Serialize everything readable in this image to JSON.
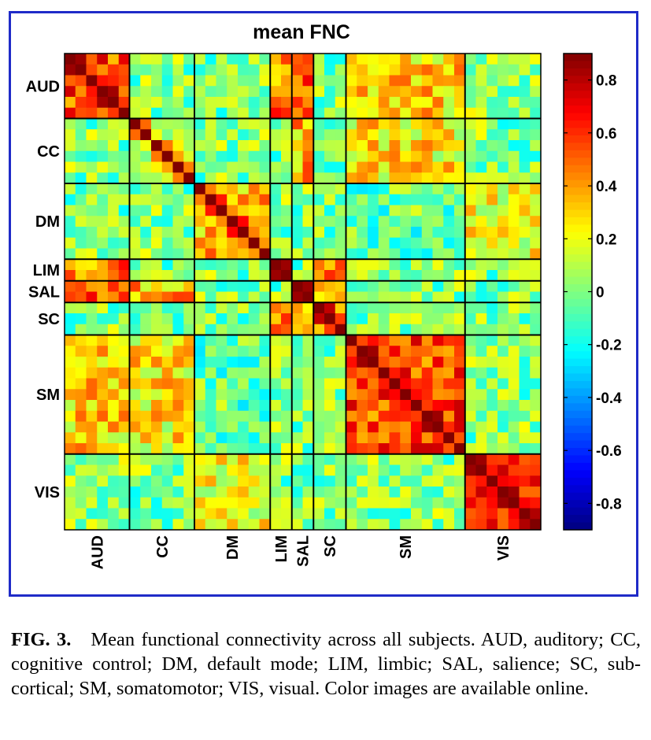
{
  "chart_data": {
    "type": "heatmap",
    "title": "mean FNC",
    "matrix_size": 44,
    "domains": [
      {
        "label": "AUD",
        "start": 0,
        "size": 6
      },
      {
        "label": "CC",
        "start": 6,
        "size": 6
      },
      {
        "label": "DM",
        "start": 12,
        "size": 7
      },
      {
        "label": "LIM",
        "start": 19,
        "size": 2
      },
      {
        "label": "SAL",
        "start": 21,
        "size": 2
      },
      {
        "label": "SC",
        "start": 23,
        "size": 3
      },
      {
        "label": "SM",
        "start": 26,
        "size": 11
      },
      {
        "label": "VIS",
        "start": 37,
        "size": 7
      }
    ],
    "block_means": {
      "within": {
        "AUD": 0.55,
        "CC": 0.15,
        "DM": 0.35,
        "LIM": 0.7,
        "SAL": 0.7,
        "SC": 0.5,
        "SM": 0.55,
        "VIS": 0.65
      },
      "between_baseline": 0.0,
      "notable_pairs": [
        {
          "a": "AUD",
          "b": "SM",
          "value": 0.3
        },
        {
          "a": "AUD",
          "b": "LIM",
          "value": 0.45
        },
        {
          "a": "AUD",
          "b": "SAL",
          "value": 0.5
        },
        {
          "a": "AUD",
          "b": "VIS",
          "value": 0.05
        },
        {
          "a": "CC",
          "b": "SM",
          "value": 0.25
        },
        {
          "a": "CC",
          "b": "SAL",
          "value": 0.35
        },
        {
          "a": "DM",
          "b": "VIS",
          "value": 0.2
        },
        {
          "a": "LIM",
          "b": "SC",
          "value": 0.4
        },
        {
          "a": "SAL",
          "b": "SC",
          "value": 0.4
        },
        {
          "a": "DM",
          "b": "SM",
          "value": -0.05
        }
      ]
    },
    "colorbar": {
      "range": [
        -0.9,
        0.9
      ],
      "ticks": [
        0.8,
        0.6,
        0.4,
        0.2,
        0,
        -0.2,
        -0.4,
        -0.6,
        -0.8
      ],
      "tick_labels": [
        "0.8",
        "0.6",
        "0.4",
        "0.2",
        "0",
        "-0.2",
        "-0.4",
        "-0.6",
        "-0.8"
      ],
      "colormap": "jet"
    },
    "colors": {
      "frame": "#1f2bc8",
      "separator": "#000000"
    }
  },
  "caption": {
    "label": "FIG. 3.",
    "text": "Mean functional connectivity across all subjects. AUD, auditory; CC, cognitive control; DM, default mode; LIM, limbic; SAL, salience; SC, sub-cortical; SM, somato­motor; VIS, visual. Color images are available online."
  }
}
